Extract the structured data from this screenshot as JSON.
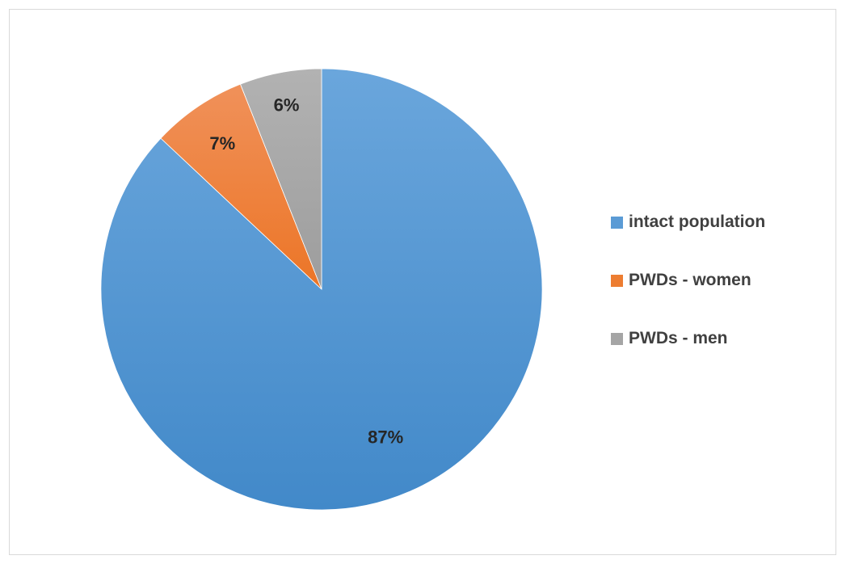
{
  "chart_data": {
    "type": "pie",
    "categories": [
      "intact population",
      "PWDs - women",
      "PWDs - men"
    ],
    "values": [
      87,
      7,
      6
    ],
    "labels": [
      "87%",
      "7%",
      "6%"
    ],
    "colors": [
      "#5b9bd5",
      "#ed7d31",
      "#a5a5a5"
    ],
    "start_angle_deg": 0,
    "direction": "clockwise",
    "legend_position": "right"
  }
}
